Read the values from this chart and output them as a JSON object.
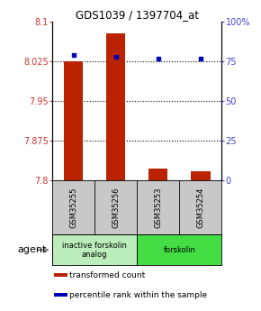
{
  "title": "GDS1039 / 1397704_at",
  "samples": [
    "GSM35255",
    "GSM35256",
    "GSM35253",
    "GSM35254"
  ],
  "red_values": [
    8.025,
    8.078,
    7.822,
    7.817
  ],
  "blue_values": [
    79,
    78,
    76.5,
    76.5
  ],
  "ylim_left": [
    7.8,
    8.1
  ],
  "ylim_right": [
    0,
    100
  ],
  "yticks_left": [
    7.8,
    7.875,
    7.95,
    8.025,
    8.1
  ],
  "ytick_labels_left": [
    "7.8",
    "7.875",
    "7.95",
    "8.025",
    "8.1"
  ],
  "yticks_right": [
    0,
    25,
    50,
    75,
    100
  ],
  "ytick_labels_right": [
    "0",
    "25",
    "50",
    "75",
    "100%"
  ],
  "groups": [
    {
      "label": "inactive forskolin\nanalog",
      "color": "#bbeebb",
      "span": [
        0,
        2
      ],
      "xcenter": 0.75
    },
    {
      "label": "forskolin",
      "color": "#44dd44",
      "span": [
        2,
        4
      ],
      "xcenter": 2.75
    }
  ],
  "bar_color": "#bb2200",
  "dot_color": "#0000bb",
  "gsm_bg_color": "#c8c8c8",
  "plot_bg": "#ffffff",
  "left_tick_color": "#cc3333",
  "right_tick_color": "#4444cc",
  "bar_width": 0.45,
  "agent_label": "agent",
  "legend_items": [
    {
      "color": "#bb2200",
      "label": "transformed count"
    },
    {
      "color": "#0000bb",
      "label": "percentile rank within the sample"
    }
  ]
}
